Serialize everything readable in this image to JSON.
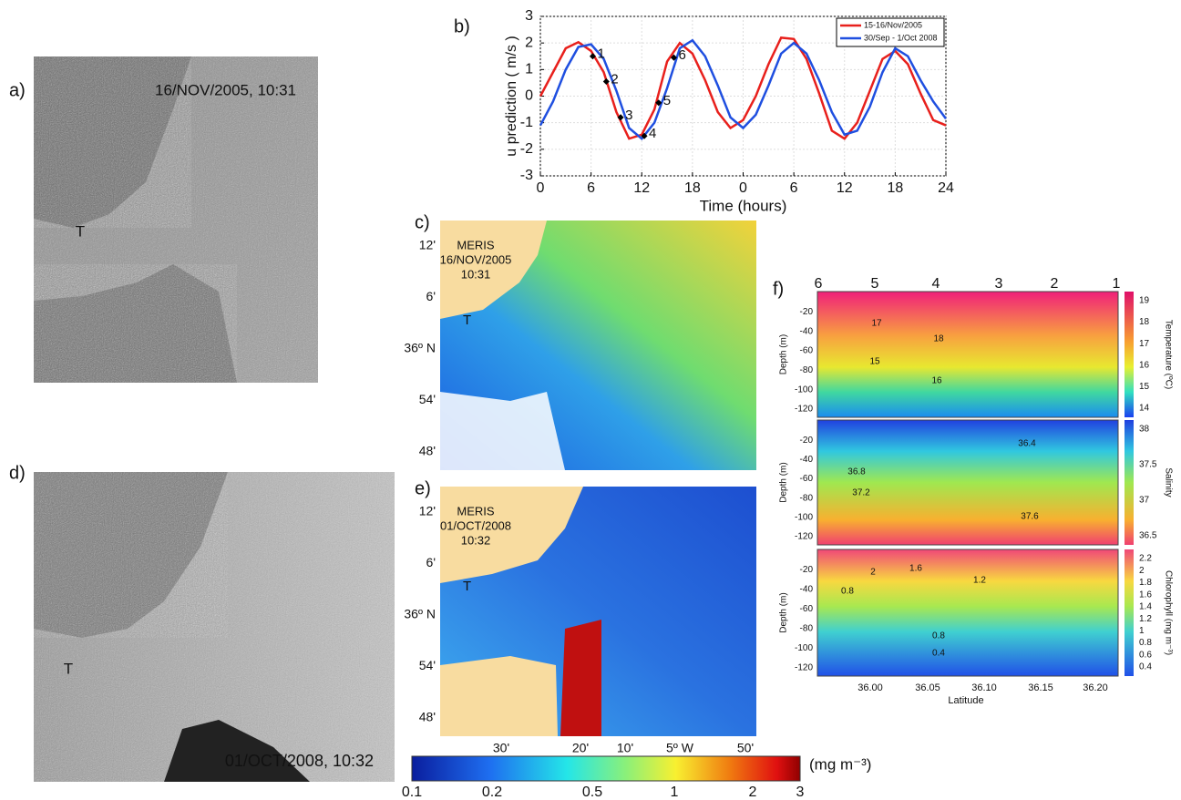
{
  "chart_data": {
    "type": "line",
    "panel_label": "b)",
    "y_label": "u prediction ( m/s )",
    "x_label": "Time (hours)",
    "xlim": [
      0,
      48
    ],
    "xticks": [
      0,
      6,
      12,
      18,
      {
        "value": 24,
        "label": "0"
      },
      {
        "value": 30,
        "label": "6"
      },
      {
        "value": 36,
        "label": "12"
      },
      {
        "value": 42,
        "label": "18"
      },
      {
        "value": 48,
        "label": "24"
      }
    ],
    "ylim": [
      -3,
      3
    ],
    "yticks": [
      -3,
      -2,
      -1,
      0,
      1,
      2,
      3
    ],
    "grid": true,
    "legend": "top-right",
    "x": [
      0,
      1.5,
      3,
      4.5,
      6,
      7.5,
      9,
      10.5,
      12,
      13.5,
      15,
      16.5,
      18,
      19.5,
      21,
      22.5,
      24,
      25.5,
      27,
      28.5,
      30,
      31.5,
      33,
      34.5,
      36,
      37.5,
      39,
      40.5,
      42,
      43.5,
      45,
      46.5,
      48
    ],
    "series": [
      {
        "name": "15-16/Nov/2005",
        "color": "#e8201c",
        "values": [
          0,
          0.9,
          1.8,
          2.03,
          1.7,
          0.9,
          -0.6,
          -1.6,
          -1.45,
          -0.5,
          1.3,
          2.0,
          1.6,
          0.6,
          -0.6,
          -1.2,
          -0.9,
          0.0,
          1.2,
          2.2,
          2.15,
          1.4,
          0.1,
          -1.3,
          -1.6,
          -1.0,
          0.2,
          1.4,
          1.7,
          1.2,
          0.1,
          -0.9,
          -1.1
        ]
      },
      {
        "name": "30/Sep - 1/Oct 2008",
        "color": "#1f4fe0",
        "values": [
          -1.1,
          -0.2,
          1.0,
          1.85,
          1.95,
          1.4,
          0.2,
          -1.2,
          -1.6,
          -1.0,
          0.3,
          1.8,
          2.1,
          1.5,
          0.4,
          -0.8,
          -1.2,
          -0.7,
          0.4,
          1.6,
          2.0,
          1.6,
          0.6,
          -0.6,
          -1.45,
          -1.3,
          -0.4,
          0.9,
          1.8,
          1.5,
          0.6,
          -0.2,
          -0.85
        ]
      }
    ],
    "annotations": [
      {
        "text": "1",
        "x": 6.2,
        "y": 1.5
      },
      {
        "text": "2",
        "x": 7.8,
        "y": 0.55
      },
      {
        "text": "3",
        "x": 9.5,
        "y": -0.8
      },
      {
        "text": "4",
        "x": 12.3,
        "y": -1.5
      },
      {
        "text": "5",
        "x": 14,
        "y": -0.25
      },
      {
        "text": "6",
        "x": 15.8,
        "y": 1.45
      }
    ]
  },
  "panels": {
    "a": {
      "label": "a)",
      "stamp": "16/NOV/2005, 10:31",
      "site": "T"
    },
    "c": {
      "label": "c)",
      "lines": [
        "MERIS",
        "16/NOV/2005",
        "10:31"
      ],
      "site": "T",
      "lat_labels": [
        "12'",
        "6'",
        "36º N",
        "54'",
        "48'"
      ]
    },
    "d": {
      "label": "d)",
      "stamp": "01/OCT/2008, 10:32",
      "site": "T"
    },
    "e": {
      "label": "e)",
      "lines": [
        "MERIS",
        "01/OCT/2008",
        "10:32"
      ],
      "site": "T",
      "lat_labels": [
        "12'",
        "6'",
        "36º N",
        "54'",
        "48'"
      ],
      "lon_labels": [
        "30'",
        "20'",
        "10'",
        "5º W",
        "50'"
      ]
    },
    "colorbar": {
      "ticks": [
        "0.1",
        "0.2",
        "0.5",
        "1",
        "2",
        "3"
      ],
      "unit": "(mg m⁻³)"
    },
    "f": {
      "label": "f)",
      "stations": [
        "6",
        "5",
        "4",
        "3",
        "2",
        "1"
      ],
      "y_label": "Depth (m)",
      "depth_ticks": [
        "-20",
        "-40",
        "-60",
        "-80",
        "-100",
        "-120"
      ],
      "x_ticks": [
        "36.00",
        "36.05",
        "36.10",
        "36.15",
        "36.20"
      ],
      "x_label": "Latitude",
      "plots": [
        {
          "name": "Temperature (ºC)",
          "scale": [
            "19",
            "18",
            "17",
            "16",
            "15",
            "14"
          ],
          "contours": [
            "17",
            "18",
            "15",
            "16"
          ]
        },
        {
          "name": "Salinity",
          "scale": [
            "38",
            "37.5",
            "37",
            "36.5"
          ],
          "contours": [
            "36.4",
            "36.8",
            "37.2",
            "37.6"
          ]
        },
        {
          "name": "Chlorophyll (mg m⁻³)",
          "scale": [
            "2.2",
            "2",
            "1.8",
            "1.6",
            "1.4",
            "1.2",
            "1",
            "0.8",
            "0.6",
            "0.4"
          ],
          "contours": [
            "2",
            "1.6",
            "1.2",
            "0.8",
            "0.8",
            "0.4"
          ]
        }
      ]
    }
  }
}
